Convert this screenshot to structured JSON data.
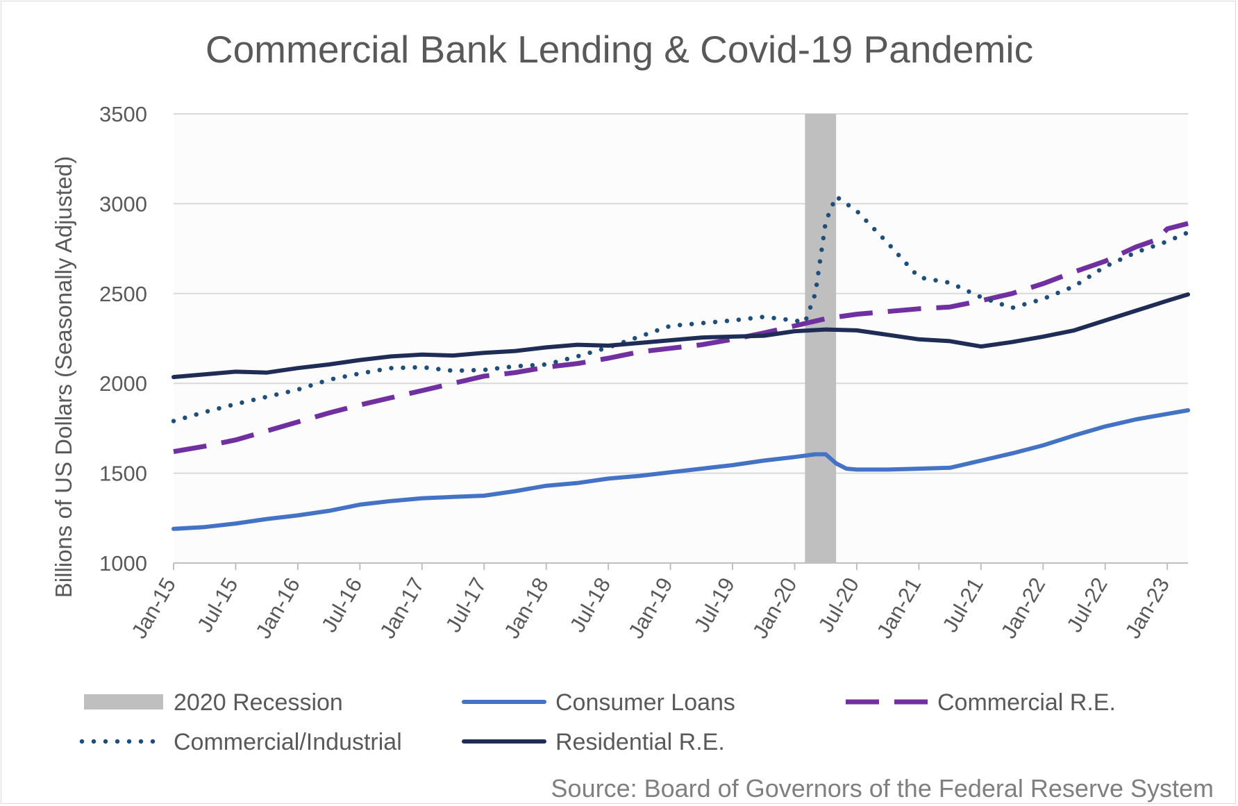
{
  "chart_data": {
    "type": "line",
    "title": "Commercial Bank Lending & Covid-19 Pandemic",
    "ylabel": "Billions of US Dollars (Seasonally Adjusted)",
    "xlabel": "",
    "source": "Source: Board of Governors of the Federal Reserve System",
    "ylim": [
      1000,
      3500
    ],
    "yticks": [
      1000,
      1500,
      2000,
      2500,
      3000,
      3500
    ],
    "xlim": [
      "2015-01",
      "2023-03"
    ],
    "xtick_labels": [
      "Jan-15",
      "Jul-15",
      "Jan-16",
      "Jul-16",
      "Jan-17",
      "Jul-17",
      "Jan-18",
      "Jul-18",
      "Jan-19",
      "Jul-19",
      "Jan-20",
      "Jul-20",
      "Jan-21",
      "Jul-21",
      "Jan-22",
      "Jul-22",
      "Jan-23"
    ],
    "xtick_months": [
      "2015-01",
      "2015-07",
      "2016-01",
      "2016-07",
      "2017-01",
      "2017-07",
      "2018-01",
      "2018-07",
      "2019-01",
      "2019-07",
      "2020-01",
      "2020-07",
      "2021-01",
      "2021-07",
      "2022-01",
      "2022-07",
      "2023-01"
    ],
    "grid": "horizontal",
    "legend_position": "bottom",
    "recession": {
      "name": "2020 Recession",
      "start": "2020-02",
      "end": "2020-05",
      "color": "#bfbfbf"
    },
    "series": [
      {
        "name": "Consumer Loans",
        "style": "solid",
        "color": "#4472c4",
        "points": [
          [
            "2015-01",
            1190
          ],
          [
            "2015-04",
            1200
          ],
          [
            "2015-07",
            1220
          ],
          [
            "2015-10",
            1245
          ],
          [
            "2016-01",
            1265
          ],
          [
            "2016-04",
            1290
          ],
          [
            "2016-07",
            1325
          ],
          [
            "2016-10",
            1345
          ],
          [
            "2017-01",
            1360
          ],
          [
            "2017-04",
            1368
          ],
          [
            "2017-07",
            1375
          ],
          [
            "2017-10",
            1400
          ],
          [
            "2018-01",
            1430
          ],
          [
            "2018-04",
            1445
          ],
          [
            "2018-07",
            1470
          ],
          [
            "2018-10",
            1485
          ],
          [
            "2019-01",
            1505
          ],
          [
            "2019-04",
            1525
          ],
          [
            "2019-07",
            1545
          ],
          [
            "2019-10",
            1570
          ],
          [
            "2020-01",
            1590
          ],
          [
            "2020-03",
            1605
          ],
          [
            "2020-04",
            1605
          ],
          [
            "2020-05",
            1555
          ],
          [
            "2020-06",
            1525
          ],
          [
            "2020-07",
            1520
          ],
          [
            "2020-10",
            1520
          ],
          [
            "2021-01",
            1525
          ],
          [
            "2021-04",
            1530
          ],
          [
            "2021-07",
            1570
          ],
          [
            "2021-10",
            1610
          ],
          [
            "2022-01",
            1655
          ],
          [
            "2022-04",
            1710
          ],
          [
            "2022-07",
            1760
          ],
          [
            "2022-10",
            1800
          ],
          [
            "2023-01",
            1830
          ],
          [
            "2023-03",
            1850
          ]
        ]
      },
      {
        "name": "Commercial R.E.",
        "style": "dashed",
        "color": "#7030a0",
        "points": [
          [
            "2015-01",
            1620
          ],
          [
            "2015-04",
            1650
          ],
          [
            "2015-07",
            1685
          ],
          [
            "2015-10",
            1735
          ],
          [
            "2016-01",
            1785
          ],
          [
            "2016-04",
            1835
          ],
          [
            "2016-07",
            1880
          ],
          [
            "2016-10",
            1920
          ],
          [
            "2017-01",
            1960
          ],
          [
            "2017-04",
            2000
          ],
          [
            "2017-07",
            2040
          ],
          [
            "2017-10",
            2060
          ],
          [
            "2018-01",
            2090
          ],
          [
            "2018-04",
            2110
          ],
          [
            "2018-07",
            2140
          ],
          [
            "2018-10",
            2175
          ],
          [
            "2019-01",
            2195
          ],
          [
            "2019-04",
            2215
          ],
          [
            "2019-07",
            2245
          ],
          [
            "2019-10",
            2280
          ],
          [
            "2020-01",
            2320
          ],
          [
            "2020-04",
            2360
          ],
          [
            "2020-07",
            2385
          ],
          [
            "2020-10",
            2400
          ],
          [
            "2021-01",
            2415
          ],
          [
            "2021-04",
            2425
          ],
          [
            "2021-07",
            2460
          ],
          [
            "2021-10",
            2500
          ],
          [
            "2022-01",
            2555
          ],
          [
            "2022-04",
            2620
          ],
          [
            "2022-07",
            2680
          ],
          [
            "2022-10",
            2760
          ],
          [
            "2022-12",
            2800
          ],
          [
            "2023-01",
            2860
          ],
          [
            "2023-03",
            2890
          ]
        ]
      },
      {
        "name": "Commercial/Industrial",
        "style": "dotted",
        "color": "#1f4e79",
        "points": [
          [
            "2015-01",
            1790
          ],
          [
            "2015-04",
            1840
          ],
          [
            "2015-07",
            1885
          ],
          [
            "2015-10",
            1925
          ],
          [
            "2016-01",
            1965
          ],
          [
            "2016-04",
            2020
          ],
          [
            "2016-07",
            2055
          ],
          [
            "2016-10",
            2085
          ],
          [
            "2017-01",
            2090
          ],
          [
            "2017-04",
            2070
          ],
          [
            "2017-07",
            2075
          ],
          [
            "2017-10",
            2095
          ],
          [
            "2018-01",
            2105
          ],
          [
            "2018-04",
            2150
          ],
          [
            "2018-07",
            2200
          ],
          [
            "2018-10",
            2260
          ],
          [
            "2019-01",
            2320
          ],
          [
            "2019-04",
            2335
          ],
          [
            "2019-07",
            2350
          ],
          [
            "2019-10",
            2370
          ],
          [
            "2020-01",
            2350
          ],
          [
            "2020-02",
            2340
          ],
          [
            "2020-03",
            2500
          ],
          [
            "2020-04",
            2900
          ],
          [
            "2020-05",
            3040
          ],
          [
            "2020-07",
            2960
          ],
          [
            "2020-10",
            2780
          ],
          [
            "2021-01",
            2590
          ],
          [
            "2021-04",
            2560
          ],
          [
            "2021-07",
            2480
          ],
          [
            "2021-10",
            2420
          ],
          [
            "2022-01",
            2470
          ],
          [
            "2022-04",
            2540
          ],
          [
            "2022-07",
            2650
          ],
          [
            "2022-10",
            2730
          ],
          [
            "2023-01",
            2790
          ],
          [
            "2023-03",
            2840
          ]
        ]
      },
      {
        "name": "Residential R.E.",
        "style": "solid",
        "color": "#1f2d56",
        "points": [
          [
            "2015-01",
            2035
          ],
          [
            "2015-04",
            2050
          ],
          [
            "2015-07",
            2065
          ],
          [
            "2015-10",
            2060
          ],
          [
            "2016-01",
            2085
          ],
          [
            "2016-04",
            2105
          ],
          [
            "2016-07",
            2130
          ],
          [
            "2016-10",
            2150
          ],
          [
            "2017-01",
            2160
          ],
          [
            "2017-04",
            2155
          ],
          [
            "2017-07",
            2170
          ],
          [
            "2017-10",
            2180
          ],
          [
            "2018-01",
            2200
          ],
          [
            "2018-04",
            2215
          ],
          [
            "2018-07",
            2210
          ],
          [
            "2018-10",
            2225
          ],
          [
            "2019-01",
            2240
          ],
          [
            "2019-04",
            2255
          ],
          [
            "2019-07",
            2260
          ],
          [
            "2019-10",
            2265
          ],
          [
            "2020-01",
            2290
          ],
          [
            "2020-04",
            2300
          ],
          [
            "2020-07",
            2295
          ],
          [
            "2020-10",
            2270
          ],
          [
            "2021-01",
            2245
          ],
          [
            "2021-04",
            2235
          ],
          [
            "2021-07",
            2205
          ],
          [
            "2021-10",
            2230
          ],
          [
            "2022-01",
            2260
          ],
          [
            "2022-04",
            2295
          ],
          [
            "2022-07",
            2350
          ],
          [
            "2022-10",
            2405
          ],
          [
            "2023-01",
            2460
          ],
          [
            "2023-03",
            2495
          ]
        ]
      }
    ]
  }
}
